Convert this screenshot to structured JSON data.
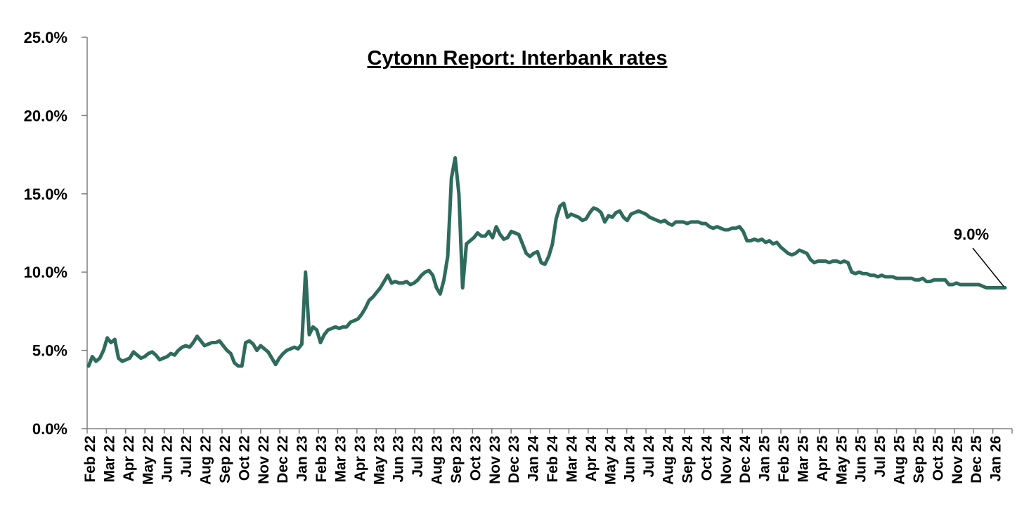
{
  "chart_data": {
    "type": "line",
    "title": "Cytonn Report: Interbank rates",
    "xlabel": "",
    "ylabel": "",
    "ylim": [
      0,
      25
    ],
    "y_ticks": [
      "0.0%",
      "5.0%",
      "10.0%",
      "15.0%",
      "20.0%",
      "25.0%"
    ],
    "y_tick_values": [
      0,
      5,
      10,
      15,
      20,
      25
    ],
    "x_ticks": [
      "Feb 22",
      "Mar 22",
      "Apr 22",
      "May 22",
      "Jun 22",
      "Jul 22",
      "Aug 22",
      "Sep 22",
      "Oct 22",
      "Nov 22",
      "Dec 22",
      "Jan 23",
      "Feb 23",
      "Mar 23",
      "Apr 23",
      "May 23",
      "Jun 23",
      "Jul 23",
      "Aug 23",
      "Sep 23",
      "Oct 23",
      "Nov 23",
      "Dec 23",
      "Jan 24",
      "Feb 24",
      "Mar 24",
      "Apr 24",
      "May 24",
      "Jun 24",
      "Jul 24",
      "Aug 24",
      "Sep 24",
      "Oct 24",
      "Nov 24",
      "Dec 24",
      "Jan 25",
      "Feb 25",
      "Mar 25",
      "Apr 25",
      "May 25",
      "Jun 25",
      "Jul 25",
      "Aug 25",
      "Sep 25",
      "Oct 25",
      "Nov 25",
      "Dec 25",
      "Jan 26"
    ],
    "grid": false,
    "legend": "none",
    "line_color": "#2e6b5c",
    "series": [
      {
        "values": [
          4.0,
          4.6,
          4.3,
          4.5,
          5.0,
          5.8,
          5.5,
          5.7,
          4.5,
          4.3,
          4.4,
          4.5,
          4.9,
          4.7,
          4.5,
          4.6,
          4.8,
          4.9,
          4.7,
          4.4,
          4.5,
          4.6,
          4.8,
          4.7,
          5.0,
          5.2,
          5.3,
          5.2,
          5.5,
          5.9,
          5.6,
          5.3,
          5.4,
          5.5,
          5.5,
          5.6,
          5.3,
          5.0,
          4.8,
          4.2,
          4.0,
          4.0,
          5.5,
          5.6,
          5.4,
          5.0,
          5.3,
          5.1,
          4.9,
          4.5,
          4.1,
          4.5,
          4.8,
          5.0,
          5.1,
          5.2,
          5.1,
          5.4,
          10.0,
          6.0,
          6.5,
          6.3,
          5.5,
          6.0,
          6.3,
          6.4,
          6.5,
          6.4,
          6.5,
          6.5,
          6.8,
          6.9,
          7.0,
          7.3,
          7.7,
          8.2,
          8.4,
          8.7,
          9.0,
          9.4,
          9.8,
          9.3,
          9.4,
          9.3,
          9.3,
          9.4,
          9.2,
          9.3,
          9.5,
          9.8,
          10.0,
          10.1,
          9.8,
          9.0,
          8.6,
          9.5,
          11.0,
          16.0,
          17.3,
          15.0,
          9.0,
          11.8,
          12.0,
          12.2,
          12.5,
          12.3,
          12.3,
          12.6,
          12.2,
          12.9,
          12.4,
          12.1,
          12.2,
          12.6,
          12.5,
          12.4,
          11.8,
          11.2,
          11.0,
          11.2,
          11.3,
          10.6,
          10.5,
          11.0,
          11.8,
          13.4,
          14.2,
          14.4,
          13.5,
          13.7,
          13.6,
          13.5,
          13.3,
          13.4,
          13.8,
          14.1,
          14.0,
          13.8,
          13.2,
          13.6,
          13.5,
          13.8,
          13.9,
          13.5,
          13.3,
          13.7,
          13.8,
          13.9,
          13.8,
          13.7,
          13.5,
          13.4,
          13.3,
          13.2,
          13.3,
          13.1,
          13.0,
          13.2,
          13.2,
          13.2,
          13.1,
          13.2,
          13.2,
          13.2,
          13.1,
          13.1,
          12.9,
          12.8,
          12.9,
          12.8,
          12.7,
          12.7,
          12.8,
          12.8,
          12.9,
          12.6,
          12.0,
          12.0,
          12.1,
          12.0,
          12.1,
          11.9,
          12.0,
          11.8,
          11.9,
          11.6,
          11.4,
          11.2,
          11.1,
          11.2,
          11.4,
          11.3,
          11.2,
          10.8,
          10.6,
          10.7,
          10.7,
          10.7,
          10.6,
          10.7,
          10.7,
          10.6,
          10.7,
          10.6,
          10.0,
          9.9,
          10.0,
          9.9,
          9.9,
          9.8,
          9.8,
          9.7,
          9.8,
          9.7,
          9.7,
          9.7,
          9.6,
          9.6,
          9.6,
          9.6,
          9.6,
          9.5,
          9.5,
          9.6,
          9.4,
          9.4,
          9.5,
          9.5,
          9.5,
          9.5,
          9.2,
          9.2,
          9.3,
          9.2,
          9.2,
          9.2,
          9.2,
          9.2,
          9.2,
          9.1,
          9.0,
          9.0,
          9.0,
          9.0,
          9.0,
          9.0
        ]
      }
    ],
    "annotations": [
      {
        "text": "9.0%",
        "value": 9.0,
        "points_to": "last-point"
      }
    ]
  }
}
